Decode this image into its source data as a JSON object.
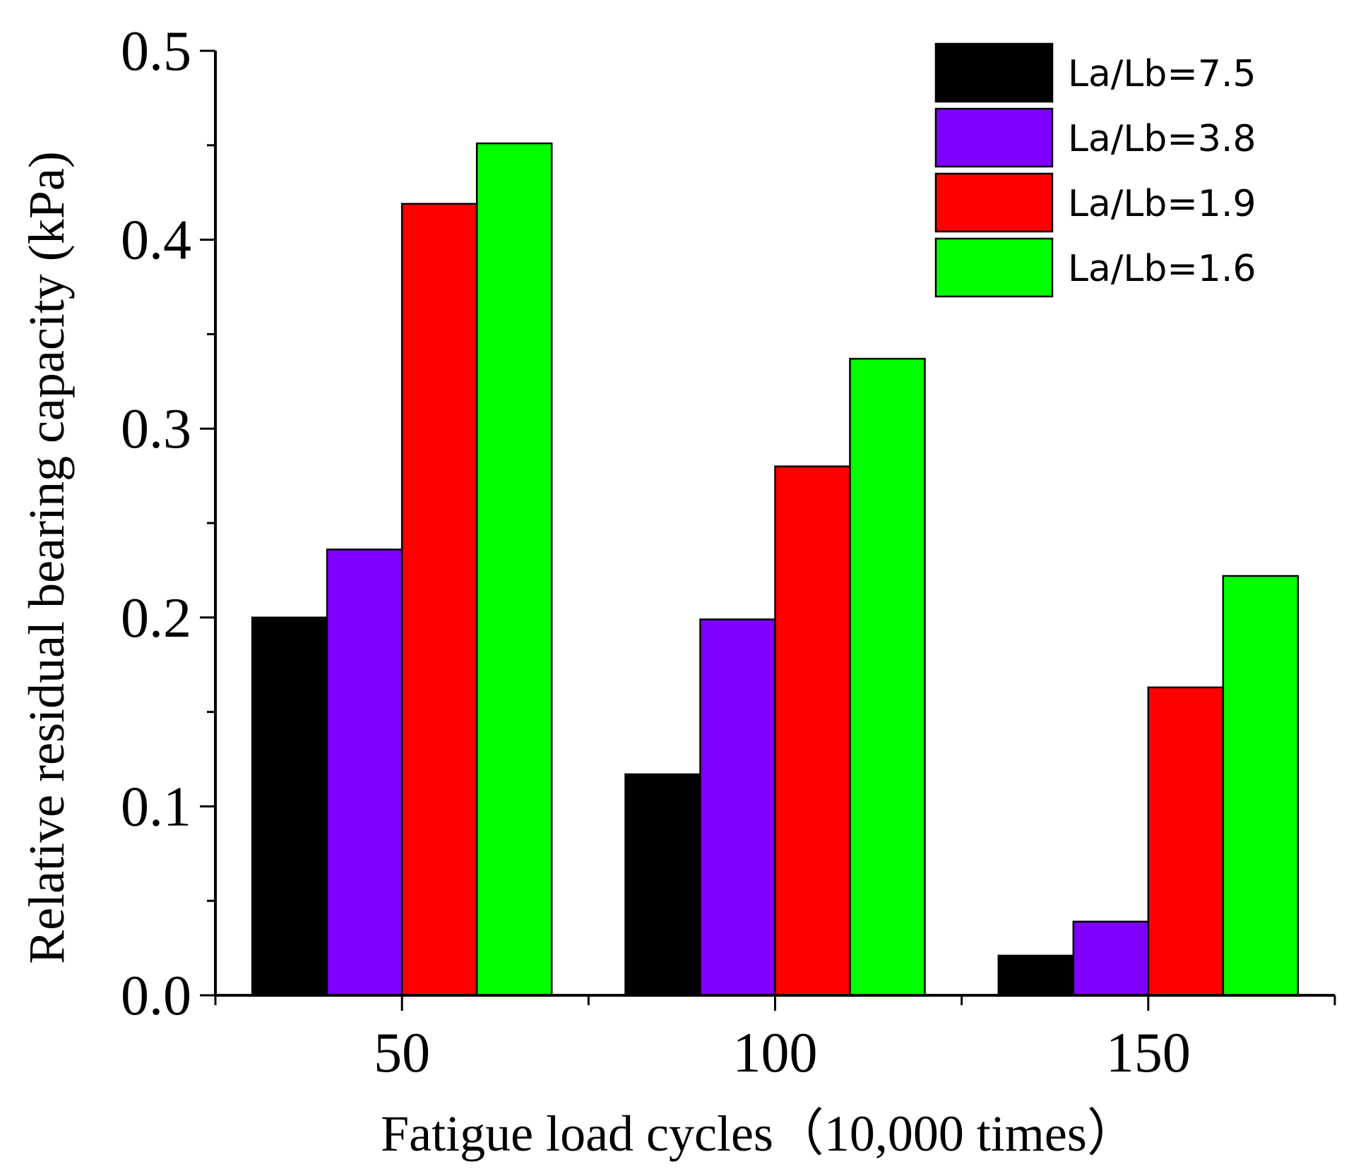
{
  "chart_data": {
    "type": "bar",
    "title": "",
    "xlabel": "Fatigue load cycles（10,000 times）",
    "ylabel": "Relative residual bearing capacity (kPa)",
    "categories": [
      "50",
      "100",
      "150"
    ],
    "ylim": [
      0,
      0.5
    ],
    "yticks": [
      "0.0",
      "0.1",
      "0.2",
      "0.3",
      "0.4",
      "0.5"
    ],
    "series": [
      {
        "name": "La/Lb=7.5",
        "color": "#000000",
        "values": [
          0.2,
          0.117,
          0.021
        ]
      },
      {
        "name": "La/Lb=3.8",
        "color": "#7f00ff",
        "values": [
          0.236,
          0.199,
          0.039
        ]
      },
      {
        "name": "La/Lb=1.9",
        "color": "#ff0000",
        "values": [
          0.419,
          0.28,
          0.163
        ]
      },
      {
        "name": "La/Lb=1.6",
        "color": "#00ff00",
        "values": [
          0.451,
          0.337,
          0.222
        ]
      }
    ],
    "legend_position": "top-right",
    "grid": false
  }
}
